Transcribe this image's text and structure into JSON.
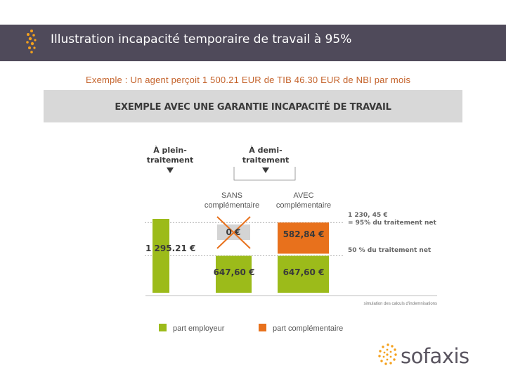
{
  "header": {
    "title": "Illustration incapacité temporaire de travail à 95%"
  },
  "subtitle": "Exemple : Un agent perçoit 1 500.21 EUR de TIB 46.30 EUR de NBI par mois",
  "chart_data": {
    "type": "bar",
    "title": "EXEMPLE AVEC UNE GARANTIE INCAPACITÉ DE TRAVAIL",
    "groups": [
      {
        "label": "À plein-traitement",
        "lines": [
          "À plein-",
          "traitement"
        ]
      },
      {
        "label": "À demi-traitement",
        "lines": [
          "À demi-",
          "traitement"
        ]
      }
    ],
    "categories": [
      "À plein-traitement",
      "SANS complémentaire",
      "AVEC complémentaire"
    ],
    "category_labels": [
      {
        "line1": "",
        "line2": ""
      },
      {
        "line1": "SANS",
        "line2": "complémentaire"
      },
      {
        "line1": "AVEC",
        "line2": "complémentaire"
      }
    ],
    "series": [
      {
        "name": "part employeur",
        "color": "#9cbb1a",
        "values": [
          1295.21,
          647.6,
          647.6
        ],
        "labels": [
          "1 295.21 €",
          "647,60 €",
          "647,60 €"
        ]
      },
      {
        "name": "part complémentaire",
        "color": "#e8711c",
        "values": [
          0,
          0,
          582.84
        ],
        "labels": [
          "",
          "0 €",
          "582,84 €"
        ]
      }
    ],
    "reference_lines": [
      {
        "value": 1230.45,
        "label_lines": [
          "1 230, 45 €",
          "= 95% du traitement net"
        ]
      },
      {
        "value": 647.6,
        "label_lines": [
          "50 % du traitement net"
        ]
      }
    ],
    "note": "simulation des calculs d'indemnisations"
  },
  "logo": {
    "text": "sofaxis",
    "color": "#f4a11d"
  }
}
